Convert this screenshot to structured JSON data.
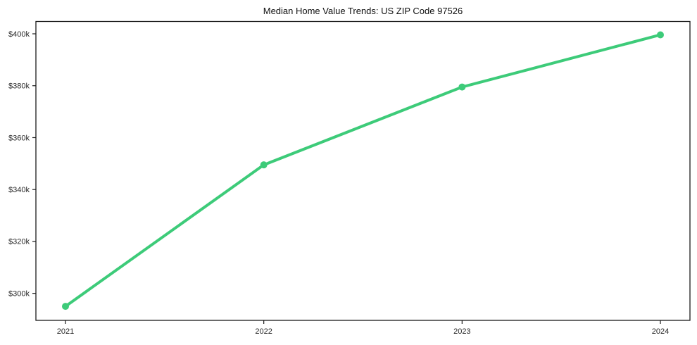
{
  "figure": {
    "background": "#ffffff"
  },
  "chart_data": {
    "type": "line",
    "title": "Median Home Value Trends: US ZIP Code 97526",
    "categories": [
      "2021",
      "2022",
      "2023",
      "2024"
    ],
    "series": [
      {
        "name": "median-home-value",
        "values": [
          295000,
          349500,
          379500,
          399600
        ],
        "color": "#3dcb79",
        "marker": "circle"
      }
    ],
    "xlabel": "",
    "ylabel": "",
    "ylim": [
      289600,
      404750
    ],
    "yticks": [
      300000,
      320000,
      340000,
      360000,
      380000,
      400000
    ],
    "ytick_labels": [
      "$300k",
      "$320k",
      "$340k",
      "$360k",
      "$380k",
      "$400k"
    ],
    "grid": false,
    "legend": "none",
    "line_width": 4,
    "marker_size": 5,
    "axis_color": "#1a1a1a",
    "tick_label_color": "#262626",
    "title_color": "#111111"
  }
}
